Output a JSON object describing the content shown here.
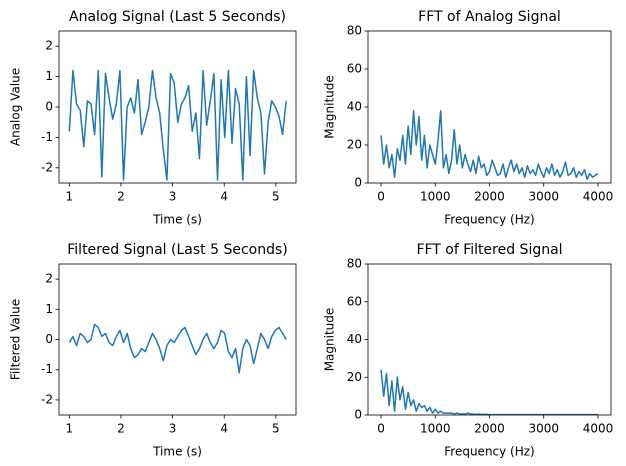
{
  "chart_data": [
    {
      "type": "line",
      "title": "Analog Signal (Last 5 Seconds)",
      "xlabel": "Time (s)",
      "ylabel": "Analog Value",
      "x": [
        1.0,
        1.07,
        1.14,
        1.21,
        1.28,
        1.35,
        1.42,
        1.49,
        1.56,
        1.63,
        1.7,
        1.77,
        1.84,
        1.91,
        1.98,
        2.05,
        2.12,
        2.19,
        2.26,
        2.33,
        2.4,
        2.47,
        2.54,
        2.61,
        2.68,
        2.75,
        2.82,
        2.89,
        2.96,
        3.03,
        3.1,
        3.17,
        3.24,
        3.31,
        3.38,
        3.45,
        3.52,
        3.59,
        3.66,
        3.73,
        3.8,
        3.87,
        3.94,
        4.01,
        4.08,
        4.15,
        4.22,
        4.29,
        4.36,
        4.43,
        4.5,
        4.57,
        4.64,
        4.71,
        4.78,
        4.85,
        4.92,
        4.99,
        5.06,
        5.13,
        5.2
      ],
      "values": [
        -0.8,
        1.2,
        0.1,
        -0.1,
        -1.3,
        0.2,
        0.1,
        -0.9,
        1.2,
        -2.3,
        1.1,
        0.3,
        -0.4,
        0.1,
        1.2,
        -2.4,
        0.0,
        0.3,
        -0.2,
        0.9,
        -0.9,
        -0.5,
        0.0,
        1.2,
        0.3,
        -0.2,
        -1.4,
        -2.4,
        1.1,
        0.8,
        -0.5,
        0.1,
        0.3,
        0.7,
        -0.8,
        -0.2,
        -1.7,
        1.2,
        -0.6,
        0.2,
        1.1,
        -2.4,
        0.9,
        -1.0,
        1.2,
        -1.2,
        0.6,
        0.1,
        -2.4,
        1.0,
        -1.6,
        1.2,
        0.3,
        -0.2,
        -2.2,
        -0.5,
        0.2,
        0.0,
        -0.3,
        -0.9,
        0.2
      ],
      "color": "#1f77b4",
      "xlim": [
        0.8,
        5.39
      ],
      "ylim": [
        -2.5,
        2.5
      ],
      "xticks": [
        1,
        2,
        3,
        4,
        5
      ],
      "yticks": [
        -2,
        -1,
        0,
        1,
        2
      ]
    },
    {
      "type": "line",
      "title": "FFT of Analog Signal",
      "xlabel": "Frequency (Hz)",
      "ylabel": "Magnitude",
      "x": [
        0,
        50,
        100,
        150,
        200,
        250,
        300,
        350,
        400,
        450,
        500,
        550,
        600,
        650,
        700,
        750,
        800,
        850,
        900,
        950,
        1000,
        1050,
        1100,
        1150,
        1200,
        1250,
        1300,
        1350,
        1400,
        1450,
        1500,
        1550,
        1600,
        1650,
        1700,
        1750,
        1800,
        1850,
        1900,
        1950,
        2000,
        2050,
        2100,
        2150,
        2200,
        2250,
        2300,
        2350,
        2400,
        2450,
        2500,
        2550,
        2600,
        2650,
        2700,
        2750,
        2800,
        2850,
        2900,
        2950,
        3000,
        3050,
        3100,
        3150,
        3200,
        3250,
        3300,
        3350,
        3400,
        3450,
        3500,
        3550,
        3600,
        3650,
        3700,
        3750,
        3800,
        3850,
        3900,
        3950,
        4000
      ],
      "values": [
        25,
        10,
        20,
        8,
        15,
        3,
        18,
        12,
        25,
        10,
        30,
        15,
        38,
        20,
        35,
        12,
        25,
        8,
        20,
        15,
        10,
        22,
        38,
        8,
        15,
        5,
        12,
        28,
        10,
        20,
        8,
        15,
        10,
        6,
        12,
        5,
        14,
        8,
        10,
        4,
        6,
        12,
        8,
        4,
        5,
        10,
        3,
        8,
        12,
        6,
        10,
        5,
        8,
        3,
        9,
        5,
        7,
        4,
        10,
        6,
        3,
        8,
        5,
        10,
        4,
        7,
        3,
        6,
        11,
        4,
        5,
        8,
        3,
        6,
        4,
        7,
        2,
        5,
        3,
        4,
        5
      ],
      "color": "#1f77b4",
      "xlim": [
        -240,
        4240
      ],
      "ylim": [
        0,
        80
      ],
      "xticks": [
        0,
        1000,
        2000,
        3000,
        4000
      ],
      "yticks": [
        0,
        20,
        40,
        60,
        80
      ]
    },
    {
      "type": "line",
      "title": "Filtered Signal (Last 5 Seconds)",
      "xlabel": "Time (s)",
      "ylabel": "Filtered Value",
      "x": [
        1.0,
        1.07,
        1.14,
        1.21,
        1.28,
        1.35,
        1.42,
        1.49,
        1.56,
        1.63,
        1.7,
        1.77,
        1.84,
        1.91,
        1.98,
        2.05,
        2.12,
        2.19,
        2.26,
        2.33,
        2.4,
        2.47,
        2.54,
        2.61,
        2.68,
        2.75,
        2.82,
        2.89,
        2.96,
        3.03,
        3.1,
        3.17,
        3.24,
        3.31,
        3.38,
        3.45,
        3.52,
        3.59,
        3.66,
        3.73,
        3.8,
        3.87,
        3.94,
        4.01,
        4.08,
        4.15,
        4.22,
        4.29,
        4.36,
        4.43,
        4.5,
        4.57,
        4.64,
        4.71,
        4.78,
        4.85,
        4.92,
        4.99,
        5.06,
        5.13,
        5.2
      ],
      "values": [
        -0.1,
        0.1,
        -0.2,
        0.2,
        0.1,
        -0.1,
        0.0,
        0.5,
        0.4,
        0.1,
        0.2,
        -0.1,
        -0.2,
        0.1,
        0.3,
        -0.1,
        0.2,
        -0.3,
        -0.6,
        -0.5,
        -0.3,
        -0.4,
        -0.1,
        0.2,
        0.0,
        -0.3,
        -0.7,
        -0.2,
        0.0,
        -0.1,
        0.1,
        0.3,
        0.4,
        0.1,
        -0.2,
        -0.5,
        -0.3,
        0.0,
        0.2,
        -0.1,
        -0.3,
        -0.1,
        0.3,
        0.2,
        -0.4,
        -0.6,
        -0.3,
        -1.1,
        -0.3,
        0.0,
        -0.2,
        -0.8,
        -0.3,
        0.2,
        0.0,
        -0.3,
        0.1,
        0.3,
        0.4,
        0.2,
        0.0
      ],
      "color": "#1f77b4",
      "xlim": [
        0.8,
        5.39
      ],
      "ylim": [
        -2.5,
        2.5
      ],
      "xticks": [
        1,
        2,
        3,
        4,
        5
      ],
      "yticks": [
        -2,
        -1,
        0,
        1,
        2
      ]
    },
    {
      "type": "line",
      "title": "FFT of Filtered Signal",
      "xlabel": "Frequency (Hz)",
      "ylabel": "Magnitude",
      "x": [
        0,
        50,
        100,
        150,
        200,
        250,
        300,
        350,
        400,
        450,
        500,
        550,
        600,
        650,
        700,
        750,
        800,
        850,
        900,
        950,
        1000,
        1050,
        1100,
        1150,
        1200,
        1250,
        1300,
        1350,
        1400,
        1450,
        1500,
        1550,
        1600,
        1650,
        1700,
        1750,
        1800,
        1850,
        1900,
        1950,
        2000,
        2050,
        2100,
        2150,
        2200,
        2250,
        2300,
        2350,
        2400,
        2450,
        2500,
        2550,
        2600,
        2650,
        2700,
        2750,
        2800,
        2850,
        2900,
        2950,
        3000,
        3050,
        3100,
        3150,
        3200,
        3250,
        3300,
        3350,
        3400,
        3450,
        3500,
        3550,
        3600,
        3650,
        3700,
        3750,
        3800,
        3850,
        3900,
        3950,
        4000
      ],
      "values": [
        24,
        10,
        22,
        5,
        18,
        2,
        20,
        8,
        15,
        3,
        12,
        5,
        8,
        2,
        6,
        4,
        5,
        2,
        4,
        1,
        3,
        1,
        2,
        1,
        1,
        1,
        1,
        0.5,
        1,
        0.5,
        0.5,
        0.5,
        1,
        0.5,
        0.5,
        0.3,
        0.5,
        0.3,
        0.3,
        0.3,
        0.2,
        0.2,
        0.2,
        0.2,
        0.2,
        0.2,
        0.2,
        0.2,
        0.2,
        0.2,
        0.2,
        0.2,
        0.2,
        0.2,
        0.2,
        0.2,
        0.2,
        0.2,
        0.2,
        0.2,
        0.2,
        0.2,
        0.2,
        0.2,
        0.2,
        0.2,
        0.2,
        0.2,
        0.2,
        0.2,
        0.2,
        0.2,
        0.2,
        0.2,
        0.2,
        0.2,
        0.2,
        0.2,
        0.2,
        0.2,
        0.2
      ],
      "color": "#1f77b4",
      "xlim": [
        -240,
        4240
      ],
      "ylim": [
        0,
        80
      ],
      "xticks": [
        0,
        1000,
        2000,
        3000,
        4000
      ],
      "yticks": [
        0,
        20,
        40,
        60,
        80
      ]
    }
  ]
}
